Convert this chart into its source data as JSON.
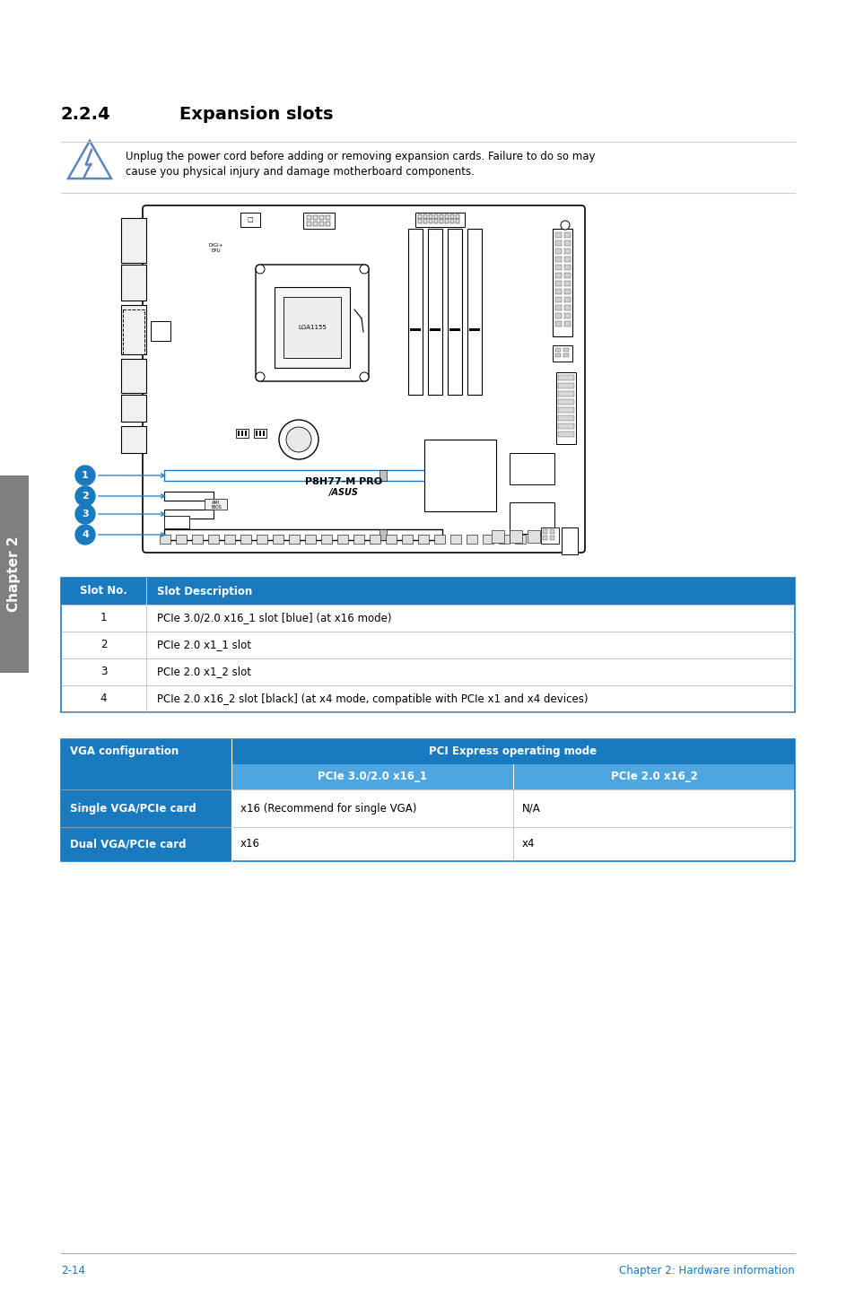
{
  "title_num": "2.2.4",
  "title_text": "Expansion slots",
  "warning_text_line1": "Unplug the power cord before adding or removing expansion cards. Failure to do so may",
  "warning_text_line2": "cause you physical injury and damage motherboard components.",
  "table1_header": [
    "Slot No.",
    "Slot Description"
  ],
  "table1_rows": [
    [
      "1",
      "PCIe 3.0/2.0 x16_1 slot [blue] (at x16 mode)"
    ],
    [
      "2",
      "PCIe 2.0 x1_1 slot"
    ],
    [
      "3",
      "PCIe 2.0 x1_2 slot"
    ],
    [
      "4",
      "PCIe 2.0 x16_2 slot [black] (at x4 mode, compatible with PCIe x1 and x4 devices)"
    ]
  ],
  "table2_header_main": "PCI Express operating mode",
  "table2_col_headers": [
    "PCIe 3.0/2.0 x16_1",
    "PCIe 2.0 x16_2"
  ],
  "table2_row_headers": [
    "VGA configuration",
    "Single VGA/PCIe card",
    "Dual VGA/PCIe card"
  ],
  "table2_data": [
    [
      "x16 (Recommend for single VGA)",
      "N/A"
    ],
    [
      "x16",
      "x4"
    ]
  ],
  "footer_left": "2-14",
  "footer_right": "Chapter 2: Hardware information",
  "chapter_tab_text": "Chapter 2",
  "chapter_tab_color": "#7f7f7f",
  "blue_color": "#1a7abf",
  "light_blue_color": "#5ba3d9",
  "lighter_blue_color": "#5ba3d9",
  "board_name": "P8H77-M PRO",
  "board_brand": "/ASUS"
}
